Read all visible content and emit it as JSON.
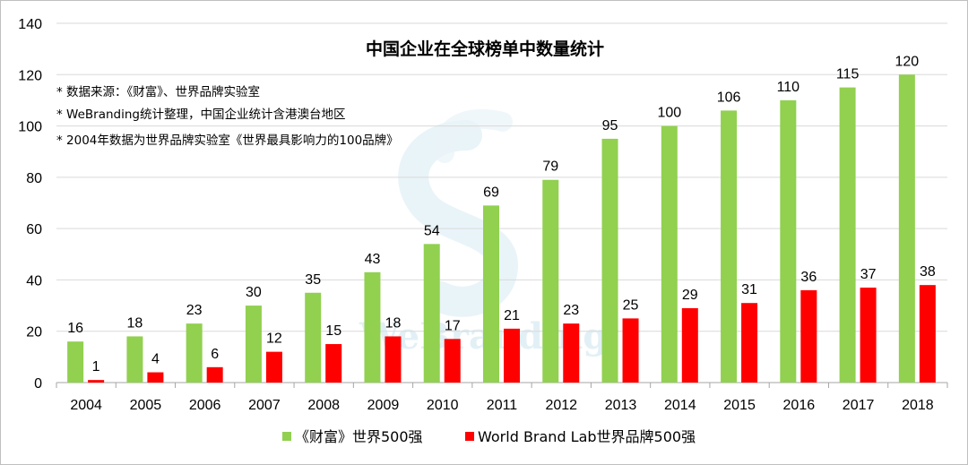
{
  "chart_data": {
    "type": "bar",
    "title": "中国企业在全球榜单中数量统计",
    "notes": [
      "* 数据来源：《财富》、世界品牌实验室",
      "* WeBranding统计整理，中国企业统计含港澳台地区",
      "* 2004年数据为世界品牌实验室《世界最具影响力的100品牌》"
    ],
    "categories": [
      "2004",
      "2005",
      "2006",
      "2007",
      "2008",
      "2009",
      "2010",
      "2011",
      "2012",
      "2013",
      "2014",
      "2015",
      "2016",
      "2017",
      "2018"
    ],
    "series": [
      {
        "name": "《财富》世界500强",
        "color": "#92d050",
        "values": [
          16,
          18,
          23,
          30,
          35,
          43,
          54,
          69,
          79,
          95,
          100,
          106,
          110,
          115,
          120
        ]
      },
      {
        "name": "World Brand Lab世界品牌500强",
        "color": "#ff0000",
        "values": [
          1,
          4,
          6,
          12,
          15,
          18,
          17,
          21,
          23,
          25,
          29,
          31,
          36,
          37,
          38
        ]
      }
    ],
    "yticks": [
      "0",
      "20",
      "40",
      "60",
      "80",
      "100",
      "120",
      "140"
    ],
    "ylim": [
      0,
      140
    ],
    "xlabel": "",
    "ylabel": "",
    "grid": true,
    "legend_position": "bottom",
    "watermark": "WeBranding"
  }
}
